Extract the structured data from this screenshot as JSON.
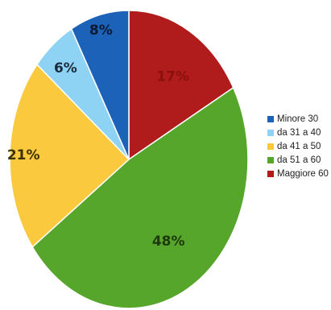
{
  "chart_data": {
    "type": "pie",
    "title": "",
    "slices": [
      {
        "label": "Maggiore 60",
        "value": 17,
        "display": "17%",
        "color": "#b01c1c",
        "text_color": "#8a1010"
      },
      {
        "label": "da 51 a 60",
        "value": 48,
        "display": "48%",
        "color": "#56a62c",
        "text_color": "#1e3a0c"
      },
      {
        "label": "da 41 a 50",
        "value": 21,
        "display": "21%",
        "color": "#fbc93d",
        "text_color": "#3a3000"
      },
      {
        "label": "da 31 a 40",
        "value": 6,
        "display": "6%",
        "color": "#8fd3f4",
        "text_color": "#1a2a3a"
      },
      {
        "label": "Minore 30",
        "value": 8,
        "display": "8%",
        "color": "#1c62b8",
        "text_color": "#0c1a33"
      }
    ],
    "start_angle_deg": 0,
    "direction": "clockwise",
    "legend": {
      "placement": "right",
      "order": [
        "Minore 30",
        "da 31 a 40",
        "da 41 a 50",
        "da 51 a 60",
        "Maggiore 60"
      ]
    }
  }
}
